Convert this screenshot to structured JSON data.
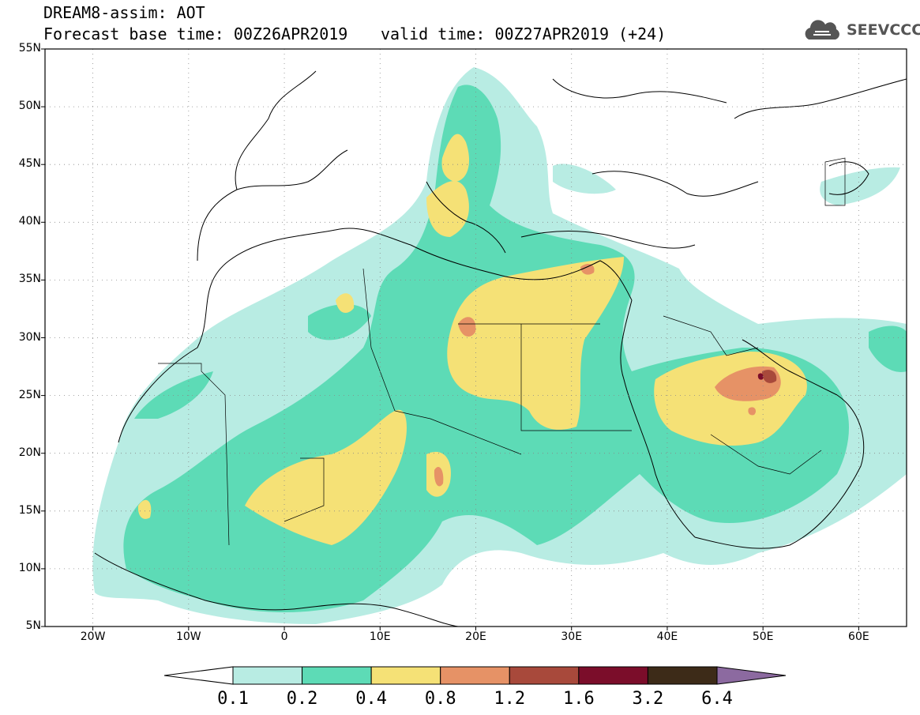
{
  "header": {
    "title": "DREAM8-assim: AOT",
    "base_time": "Forecast base time: 00Z26APR2019",
    "valid_time": "valid time: 00Z27APR2019 (+24)"
  },
  "logo": {
    "text": "SEEVCCC",
    "icon": "cloud-logo-icon"
  },
  "map": {
    "variable": "AOT",
    "lat_labels": [
      "55N",
      "50N",
      "45N",
      "40N",
      "35N",
      "30N",
      "25N",
      "20N",
      "15N",
      "10N",
      "5N"
    ],
    "lon_labels": [
      "20W",
      "10W",
      "0",
      "10E",
      "20E",
      "30E",
      "40E",
      "50E",
      "60E"
    ],
    "lat_range": [
      5,
      55
    ],
    "lon_range": [
      -25,
      65
    ],
    "grid": true
  },
  "legend": {
    "thresholds": [
      "0.1",
      "0.2",
      "0.4",
      "0.8",
      "1.2",
      "1.6",
      "3.2",
      "6.4"
    ],
    "colors": [
      "#ffffff",
      "#b8ece3",
      "#5ddbb6",
      "#f5e176",
      "#e69266",
      "#a8493b",
      "#7b0d2a",
      "#3d2b18",
      "#8c6aa0"
    ]
  },
  "colors": {
    "c01": "#b8ece3",
    "c02": "#5ddbb6",
    "c04": "#f5e176",
    "c08": "#e69266",
    "c12": "#a8493b",
    "c16": "#7b0d2a"
  }
}
